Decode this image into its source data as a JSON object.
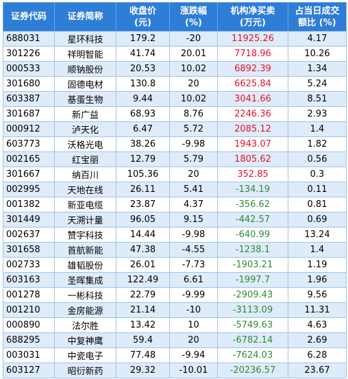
{
  "headers": {
    "code": "证券代码",
    "name": "证券简称",
    "close_l1": "收盘价",
    "close_l2": "(元)",
    "chg_l1": "涨跌幅",
    "chg_l2": "(%)",
    "net_l1": "机构净买卖",
    "net_l2": "(万元)",
    "share_l1": "占当日成交",
    "share_l2": "额比 (%)"
  },
  "colors": {
    "header_bg": "#2e7dd6",
    "row_alt_bg": "#deebf8",
    "positive": "#e8112d",
    "negative": "#2f8a3a"
  },
  "rows": [
    {
      "code": "688031",
      "name": "星环科技",
      "close": "179.2",
      "change": "-20",
      "net": "11925.26",
      "share": "4.17"
    },
    {
      "code": "301226",
      "name": "祥明智能",
      "close": "41.74",
      "change": "20.01",
      "net": "7718.96",
      "share": "10.26"
    },
    {
      "code": "000533",
      "name": "顺钠股份",
      "close": "20.53",
      "change": "10.02",
      "net": "6892.39",
      "share": "1.34"
    },
    {
      "code": "301680",
      "name": "固德电材",
      "close": "130.8",
      "change": "20",
      "net": "6625.84",
      "share": "5.24"
    },
    {
      "code": "603387",
      "name": "基蛋生物",
      "close": "9.44",
      "change": "10.02",
      "net": "3041.66",
      "share": "8.51"
    },
    {
      "code": "301687",
      "name": "新广益",
      "close": "68.93",
      "change": "8.76",
      "net": "2246.36",
      "share": "2.93"
    },
    {
      "code": "000912",
      "name": "泸天化",
      "close": "6.47",
      "change": "5.72",
      "net": "2085.12",
      "share": "1.4"
    },
    {
      "code": "603773",
      "name": "沃格光电",
      "close": "38.26",
      "change": "-9.98",
      "net": "1943.07",
      "share": "1.82"
    },
    {
      "code": "002165",
      "name": "红宝丽",
      "close": "12.79",
      "change": "5.79",
      "net": "1805.62",
      "share": "0.56"
    },
    {
      "code": "301667",
      "name": "纳百川",
      "close": "105.36",
      "change": "20",
      "net": "352.85",
      "share": "0.3"
    },
    {
      "code": "002995",
      "name": "天地在线",
      "close": "26.11",
      "change": "5.41",
      "net": "-134.19",
      "share": "0.11"
    },
    {
      "code": "001382",
      "name": "新亚电缆",
      "close": "23.87",
      "change": "4.37",
      "net": "-356.62",
      "share": "0.81"
    },
    {
      "code": "301449",
      "name": "天溯计量",
      "close": "96.05",
      "change": "9.15",
      "net": "-442.57",
      "share": "0.69"
    },
    {
      "code": "002637",
      "name": "赞宇科技",
      "close": "14.44",
      "change": "-9.98",
      "net": "-640.99",
      "share": "13.24"
    },
    {
      "code": "301658",
      "name": "首航新能",
      "close": "47.38",
      "change": "-4.55",
      "net": "-1238.1",
      "share": "1.4"
    },
    {
      "code": "002733",
      "name": "雄韬股份",
      "close": "26.01",
      "change": "-7.73",
      "net": "-1903.21",
      "share": "1.19"
    },
    {
      "code": "603163",
      "name": "圣晖集成",
      "close": "122.49",
      "change": "6.61",
      "net": "-1997.7",
      "share": "1.96"
    },
    {
      "code": "001278",
      "name": "一彬科技",
      "close": "22.79",
      "change": "-9.99",
      "net": "-2909.43",
      "share": "9.56"
    },
    {
      "code": "001210",
      "name": "金房能源",
      "close": "21.14",
      "change": "-10",
      "net": "-3113.09",
      "share": "11.31"
    },
    {
      "code": "000890",
      "name": "法尔胜",
      "close": "13.42",
      "change": "10",
      "net": "-5749.63",
      "share": "4.63"
    },
    {
      "code": "688295",
      "name": "中复神鹰",
      "close": "59.4",
      "change": "20",
      "net": "-6782.14",
      "share": "2.69"
    },
    {
      "code": "003031",
      "name": "中瓷电子",
      "close": "77.48",
      "change": "-9.94",
      "net": "-7624.03",
      "share": "6.28"
    },
    {
      "code": "603127",
      "name": "昭衍新药",
      "close": "29.32",
      "change": "-10.01",
      "net": "-20236.57",
      "share": "23.67"
    }
  ]
}
